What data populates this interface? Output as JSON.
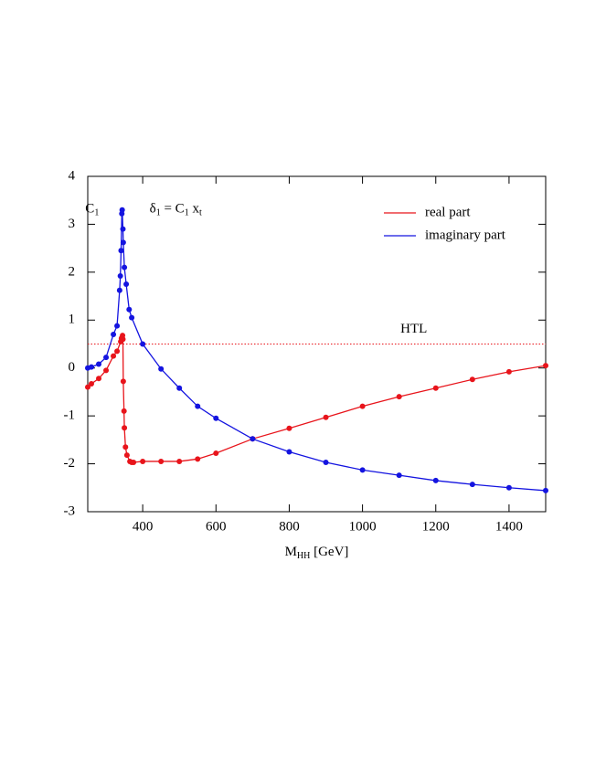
{
  "chart_data": {
    "type": "line",
    "xlabel": [
      {
        "text": "M"
      },
      {
        "text": "HH",
        "sub": true
      },
      {
        "text": " [GeV]"
      }
    ],
    "annotations": [
      {
        "parts": [
          {
            "text": "C"
          },
          {
            "text": "1",
            "sub": true
          }
        ],
        "x": 262,
        "y": 3.3
      },
      {
        "parts": [
          {
            "text": "δ"
          },
          {
            "text": "1",
            "sub": true
          },
          {
            "text": " = C"
          },
          {
            "text": "1",
            "sub": true
          },
          {
            "text": " x"
          },
          {
            "text": "t",
            "sub": true
          }
        ],
        "x": 490,
        "y": 3.3
      }
    ],
    "hline": {
      "value": 0.5,
      "label": "HTL",
      "color": "#e8141b",
      "label_x": 1140
    },
    "xlim": [
      250,
      1500
    ],
    "xticks": [
      400,
      600,
      800,
      1000,
      1200,
      1400
    ],
    "ylim": [
      -3,
      4
    ],
    "yticks": [
      -3,
      -2,
      -1,
      0,
      1,
      2,
      3,
      4
    ],
    "legend": "top-right",
    "series": [
      {
        "name": "real part",
        "color": "#e8141b",
        "x": [
          250,
          260,
          280,
          300,
          320,
          330,
          340,
          342,
          345,
          346,
          347,
          349,
          350,
          353,
          357,
          365,
          370,
          375,
          400,
          450,
          500,
          550,
          600,
          700,
          800,
          900,
          1000,
          1100,
          1200,
          1300,
          1400,
          1500
        ],
        "values": [
          -0.4,
          -0.33,
          -0.22,
          -0.05,
          0.25,
          0.35,
          0.55,
          0.62,
          0.68,
          0.6,
          -0.28,
          -0.9,
          -1.25,
          -1.65,
          -1.82,
          -1.95,
          -1.97,
          -1.97,
          -1.95,
          -1.95,
          -1.95,
          -1.9,
          -1.78,
          -1.48,
          -1.26,
          -1.03,
          -0.8,
          -0.6,
          -0.42,
          -0.24,
          -0.08,
          0.05
        ]
      },
      {
        "name": "imaginary part",
        "color": "#1414e0",
        "x": [
          250,
          260,
          280,
          300,
          320,
          330,
          337,
          339,
          341,
          343,
          344,
          346,
          347,
          350,
          355,
          363,
          370,
          400,
          450,
          500,
          550,
          600,
          700,
          800,
          900,
          1000,
          1100,
          1200,
          1300,
          1400,
          1500
        ],
        "values": [
          0.0,
          0.02,
          0.08,
          0.22,
          0.7,
          0.88,
          1.62,
          1.92,
          2.45,
          3.22,
          3.3,
          2.9,
          2.62,
          2.1,
          1.75,
          1.22,
          1.05,
          0.5,
          -0.02,
          -0.42,
          -0.8,
          -1.05,
          -1.48,
          -1.75,
          -1.97,
          -2.13,
          -2.24,
          -2.35,
          -2.43,
          -2.5,
          -2.56
        ]
      }
    ]
  }
}
